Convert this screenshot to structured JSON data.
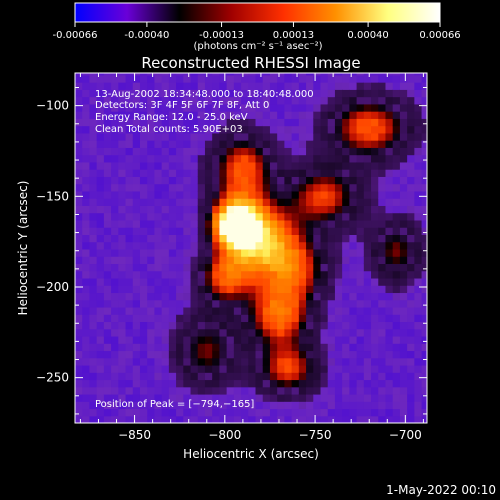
{
  "colorbar": {
    "ticks": [
      "-0.00066",
      "-0.00040",
      "-0.00013",
      "0.00013",
      "0.00040",
      "0.00066"
    ],
    "tick_values": [
      -0.00066,
      -0.0004,
      -0.00013,
      0.00013,
      0.0004,
      0.00066
    ],
    "range": [
      -0.00066,
      0.00066
    ],
    "label": "(photons cm⁻² s⁻¹ asec⁻²)",
    "colors": [
      "#0000ff",
      "#6a00d8",
      "#000000",
      "#a00000",
      "#ff3000",
      "#ff9000",
      "#ffff80",
      "#ffffff"
    ]
  },
  "chart_data": {
    "type": "heatmap",
    "title": "Reconstructed RHESSI Image",
    "xlabel": "Heliocentric X (arcsec)",
    "ylabel": "Heliocentric Y (arcsec)",
    "xlim": [
      -883,
      -688
    ],
    "ylim": [
      -275,
      -82
    ],
    "xticks": [
      -850,
      -800,
      -750,
      -700
    ],
    "yticks": [
      -100,
      -150,
      -200,
      -250
    ],
    "xtick_labels": [
      "−850",
      "−800",
      "−750",
      "−700"
    ],
    "ytick_labels": [
      "−100",
      "−150",
      "−200",
      "−250"
    ],
    "annotations": [
      "13-Aug-2002 18:34:48.000 to 18:40:48.000",
      "Detectors: 3F 4F 5F 6F 7F 8F, Att 0",
      "Energy Range: 12.0 - 25.0 keV",
      "Clean     Total counts: 5.90E+03"
    ],
    "peak_label": "Position of Peak = [−794,−165]",
    "peak": [
      -794,
      -165
    ],
    "sources": [
      {
        "x": -794,
        "y": -165,
        "sx": 9,
        "sy": 9,
        "amp": 1.0
      },
      {
        "x": -780,
        "y": -175,
        "sx": 14,
        "sy": 14,
        "amp": 0.72
      },
      {
        "x": -770,
        "y": -215,
        "sx": 12,
        "sy": 12,
        "amp": 0.55
      },
      {
        "x": -765,
        "y": -245,
        "sx": 12,
        "sy": 10,
        "amp": 0.45
      },
      {
        "x": -790,
        "y": -135,
        "sx": 12,
        "sy": 14,
        "amp": 0.5
      },
      {
        "x": -745,
        "y": -150,
        "sx": 14,
        "sy": 12,
        "amp": 0.45
      },
      {
        "x": -720,
        "y": -112,
        "sx": 16,
        "sy": 12,
        "amp": 0.5
      },
      {
        "x": -705,
        "y": -180,
        "sx": 10,
        "sy": 12,
        "amp": 0.35
      },
      {
        "x": -810,
        "y": -235,
        "sx": 12,
        "sy": 14,
        "amp": 0.35
      },
      {
        "x": -800,
        "y": -195,
        "sx": 10,
        "sy": 10,
        "amp": 0.45
      },
      {
        "x": -760,
        "y": -190,
        "sx": 12,
        "sy": 12,
        "amp": 0.4
      }
    ]
  },
  "footer": {
    "date": "1-May-2022 00:10"
  }
}
